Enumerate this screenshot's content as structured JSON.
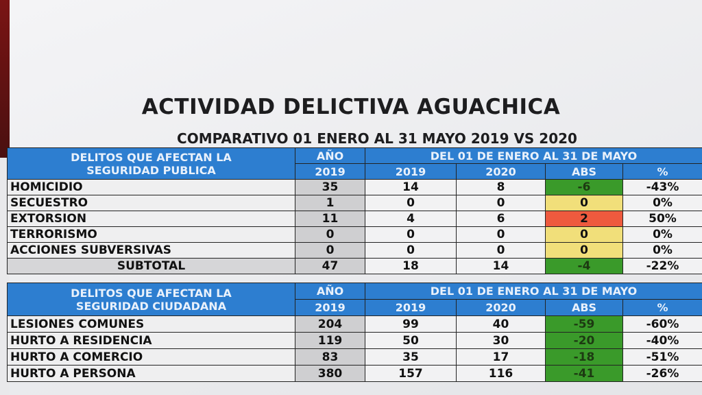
{
  "title": "ACTIVIDAD DELICTIVA  AGUACHICA",
  "subtitle": "COMPARATIVO 01 ENERO AL 31 MAYO 2019 VS 2020",
  "colors": {
    "header": "#2d7ed0",
    "decrease": "#3a9a2a",
    "no_change": "#f1df7a",
    "increase": "#ee5a3e"
  },
  "tables": [
    {
      "header_line1": "DELITOS QUE AFECTAN LA",
      "header_line2": "SEGURIDAD PUBLICA",
      "year_header": "AÑO",
      "year_value": "2019",
      "period_header": "DEL 01 DE ENERO AL 31 DE MAYO",
      "col_2019": "2019",
      "col_2020": "2020",
      "col_abs": "ABS",
      "col_pct": "%",
      "rows": [
        {
          "label": "HOMICIDIO",
          "year": "35",
          "v2019": "14",
          "v2020": "8",
          "abs": "-6",
          "pct": "-43%",
          "status": "green"
        },
        {
          "label": "SECUESTRO",
          "year": "1",
          "v2019": "0",
          "v2020": "0",
          "abs": "0",
          "pct": "0%",
          "status": "yellow"
        },
        {
          "label": "EXTORSION",
          "year": "11",
          "v2019": "4",
          "v2020": "6",
          "abs": "2",
          "pct": "50%",
          "status": "red"
        },
        {
          "label": "TERRORISMO",
          "year": "0",
          "v2019": "0",
          "v2020": "0",
          "abs": "0",
          "pct": "0%",
          "status": "yellow"
        },
        {
          "label": "ACCIONES SUBVERSIVAS",
          "year": "0",
          "v2019": "0",
          "v2020": "0",
          "abs": "0",
          "pct": "0%",
          "status": "yellow"
        },
        {
          "label": "SUBTOTAL",
          "year": "47",
          "v2019": "18",
          "v2020": "14",
          "abs": "-4",
          "pct": "-22%",
          "status": "green",
          "subtotal": true
        }
      ]
    },
    {
      "header_line1": "DELITOS QUE AFECTAN LA",
      "header_line2": "SEGURIDAD CIUDADANA",
      "year_header": "AÑO",
      "year_value": "2019",
      "period_header": "DEL 01 DE ENERO AL 31 DE MAYO",
      "col_2019": "2019",
      "col_2020": "2020",
      "col_abs": "ABS",
      "col_pct": "%",
      "rows": [
        {
          "label": "LESIONES COMUNES",
          "year": "204",
          "v2019": "99",
          "v2020": "40",
          "abs": "-59",
          "pct": "-60%",
          "status": "green"
        },
        {
          "label": "HURTO A RESIDENCIA",
          "year": "119",
          "v2019": "50",
          "v2020": "30",
          "abs": "-20",
          "pct": "-40%",
          "status": "green"
        },
        {
          "label": "HURTO A COMERCIO",
          "year": "83",
          "v2019": "35",
          "v2020": "17",
          "abs": "-18",
          "pct": "-51%",
          "status": "green"
        },
        {
          "label": "HURTO A PERSONA",
          "year": "380",
          "v2019": "157",
          "v2020": "116",
          "abs": "-41",
          "pct": "-26%",
          "status": "green"
        }
      ]
    }
  ]
}
